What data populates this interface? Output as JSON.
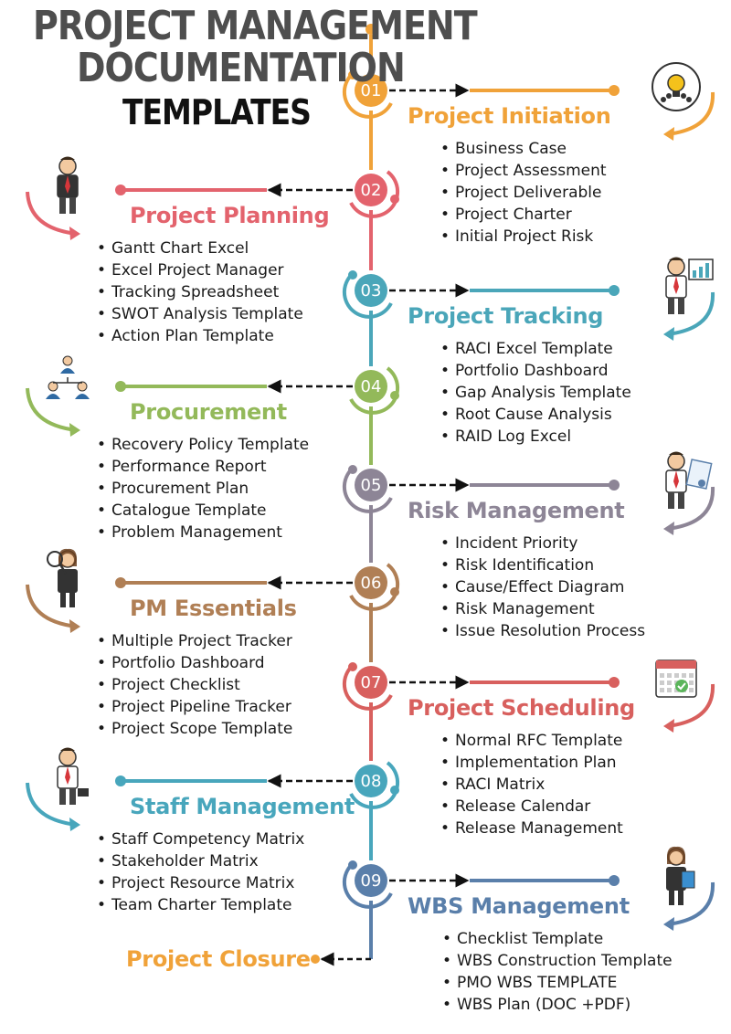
{
  "title": {
    "line1": "PROJECT MANAGEMENT",
    "line2": "DOCUMENTATION",
    "line3": "TEMPLATES"
  },
  "phases": [
    {
      "number": "01",
      "name": "Project Initiation",
      "color": "#f0a239",
      "side": "right",
      "icon": "lightbulb-team-icon",
      "items": [
        "Business Case",
        "Project Assessment",
        "Project Deliverable",
        "Project Charter",
        "Initial Project Risk"
      ]
    },
    {
      "number": "02",
      "name": "Project Planning",
      "color": "#e3636d",
      "side": "left",
      "icon": "businessman-icon",
      "items": [
        "Gantt Chart Excel",
        "Excel Project Manager",
        "Tracking Spreadsheet",
        "SWOT Analysis Template",
        "Action Plan Template"
      ]
    },
    {
      "number": "03",
      "name": "Project Tracking",
      "color": "#4aa6b9",
      "side": "right",
      "icon": "presenter-chart-icon",
      "items": [
        "RACI Excel Template",
        "Portfolio Dashboard",
        "Gap Analysis Template",
        "Root Cause Analysis",
        "RAID Log Excel"
      ]
    },
    {
      "number": "04",
      "name": "Procurement",
      "color": "#93b95a",
      "side": "left",
      "icon": "org-people-icon",
      "items": [
        "Recovery Policy Template",
        "Performance Report",
        "Procurement Plan",
        "Catalogue Template",
        "Problem Management"
      ]
    },
    {
      "number": "05",
      "name": "Risk Management",
      "color": "#8d8596",
      "side": "right",
      "icon": "man-certificate-icon",
      "items": [
        "Incident Priority",
        "Risk Identification",
        "Cause/Effect Diagram",
        "Risk Management",
        "Issue Resolution Process"
      ]
    },
    {
      "number": "06",
      "name": "PM Essentials",
      "color": "#b07f55",
      "side": "left",
      "icon": "woman-magnifier-icon",
      "items": [
        "Multiple Project Tracker",
        "Portfolio Dashboard",
        "Project Checklist",
        "Project Pipeline Tracker",
        "Project Scope Template"
      ]
    },
    {
      "number": "07",
      "name": "Project Scheduling",
      "color": "#d8605e",
      "side": "right",
      "icon": "calendar-check-icon",
      "items": [
        "Normal RFC Template",
        "Implementation Plan",
        "RACI Matrix",
        "Release Calendar",
        "Release Management"
      ]
    },
    {
      "number": "08",
      "name": "Staff Management",
      "color": "#48a6bc",
      "side": "left",
      "icon": "man-briefcase-icon",
      "items": [
        "Staff Competency Matrix",
        "Stakeholder Matrix",
        "Project Resource Matrix",
        "Team Charter Template"
      ]
    },
    {
      "number": "09",
      "name": "WBS Management",
      "color": "#5a7faa",
      "side": "right",
      "icon": "woman-clipboard-icon",
      "items": [
        "Checklist Template",
        "WBS Construction Template",
        "PMO WBS TEMPLATE",
        "WBS Plan (DOC +PDF)"
      ]
    }
  ],
  "closure": {
    "name": "Project Closure",
    "color": "#f0a239"
  }
}
